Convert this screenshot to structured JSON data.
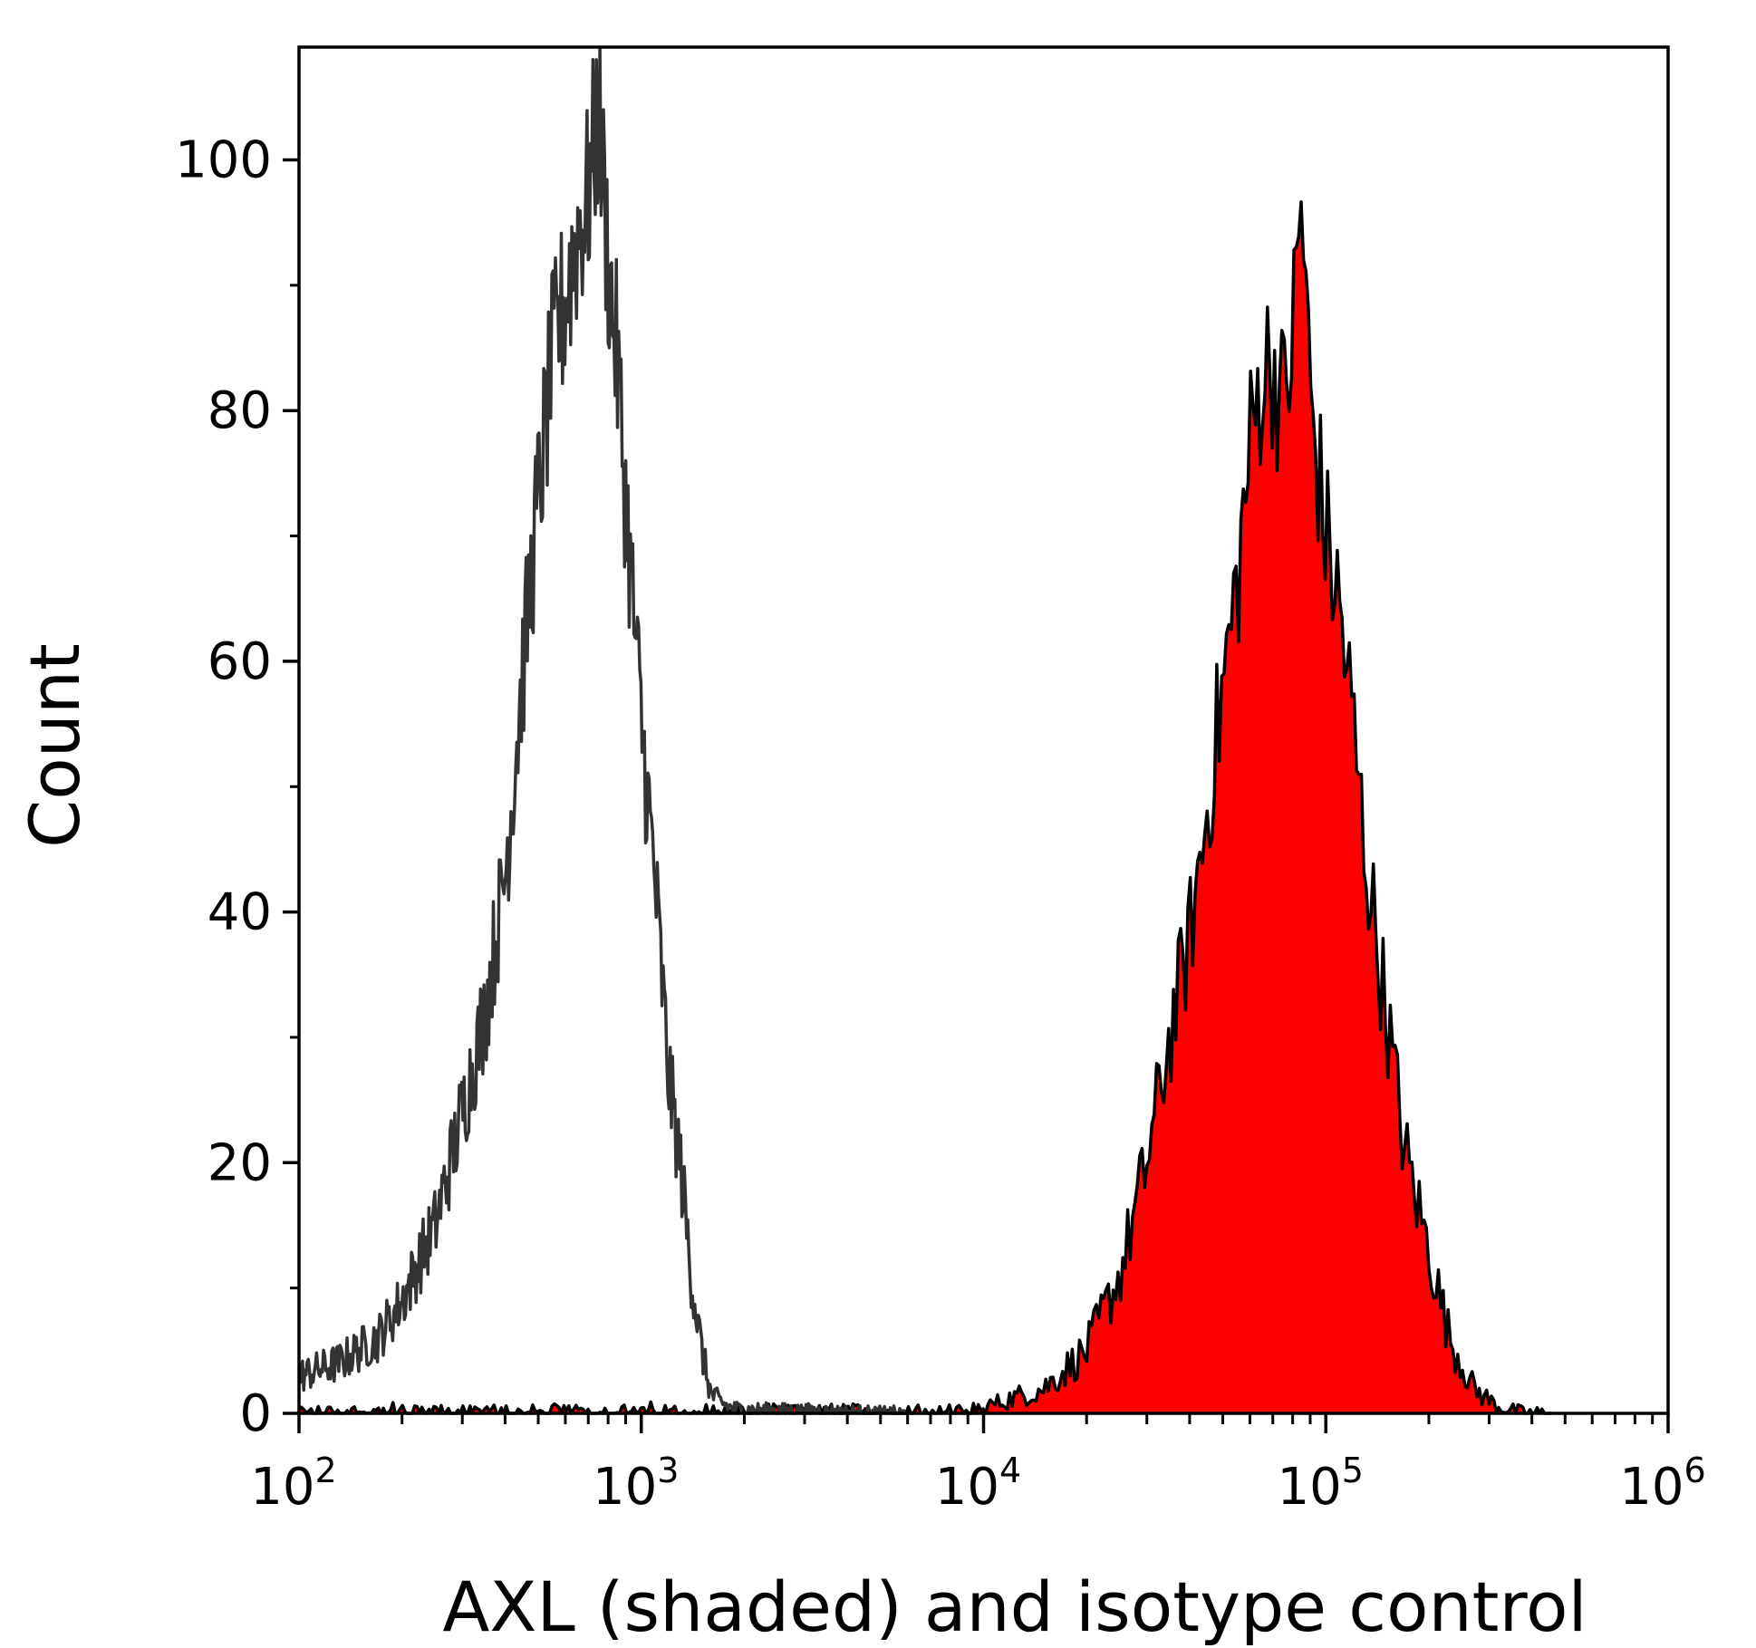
{
  "chart_data": {
    "type": "area",
    "xlabel": "AXL (shaded) and isotype control",
    "ylabel": "Count",
    "xscale": "log",
    "xlim": [
      100,
      1000000
    ],
    "ylim": [
      0,
      109
    ],
    "grid": false,
    "x_ticks": [
      {
        "base": "10",
        "exp": "2",
        "value": 100
      },
      {
        "base": "10",
        "exp": "3",
        "value": 1000
      },
      {
        "base": "10",
        "exp": "4",
        "value": 10000
      },
      {
        "base": "10",
        "exp": "5",
        "value": 100000
      },
      {
        "base": "10",
        "exp": "6",
        "value": 1000000
      }
    ],
    "y_ticks": [
      "0",
      "20",
      "40",
      "60",
      "80",
      "100"
    ],
    "series": [
      {
        "role": "isotype control",
        "style": "outline",
        "color": "#333333",
        "peak_x": 750,
        "peak_y": 104,
        "center_x": 730,
        "x": [
          100,
          130,
          170,
          200,
          250,
          300,
          350,
          400,
          450,
          500,
          550,
          600,
          650,
          700,
          750,
          800,
          850,
          900,
          1000,
          1100,
          1200,
          1300,
          1400,
          1500,
          1600,
          1800,
          2000,
          3000,
          5000
        ],
        "y": [
          3,
          4,
          6,
          9,
          15,
          24,
          32,
          43,
          59,
          73,
          84,
          89,
          94,
          97,
          104,
          92,
          84,
          73,
          55,
          42,
          27,
          20,
          11,
          5,
          1.5,
          0.5,
          0.3,
          0.2,
          0
        ]
      },
      {
        "role": "AXL",
        "style": "shaded",
        "color": "#ff0000",
        "peak_x": 85000,
        "peak_y": 97,
        "center_x": 75000,
        "x": [
          10000,
          15000,
          20000,
          25000,
          30000,
          35000,
          40000,
          45000,
          50000,
          55000,
          60000,
          65000,
          70000,
          75000,
          80000,
          85000,
          90000,
          100000,
          110000,
          120000,
          130000,
          150000,
          170000,
          200000,
          230000,
          270000,
          320000,
          380000
        ],
        "y": [
          0.5,
          2,
          5,
          11,
          20,
          30,
          38,
          48,
          58,
          66,
          77,
          83,
          84,
          80,
          86,
          97,
          81,
          70,
          64,
          55,
          45,
          32,
          21,
          13,
          6,
          2,
          0.5,
          0
        ]
      }
    ]
  }
}
